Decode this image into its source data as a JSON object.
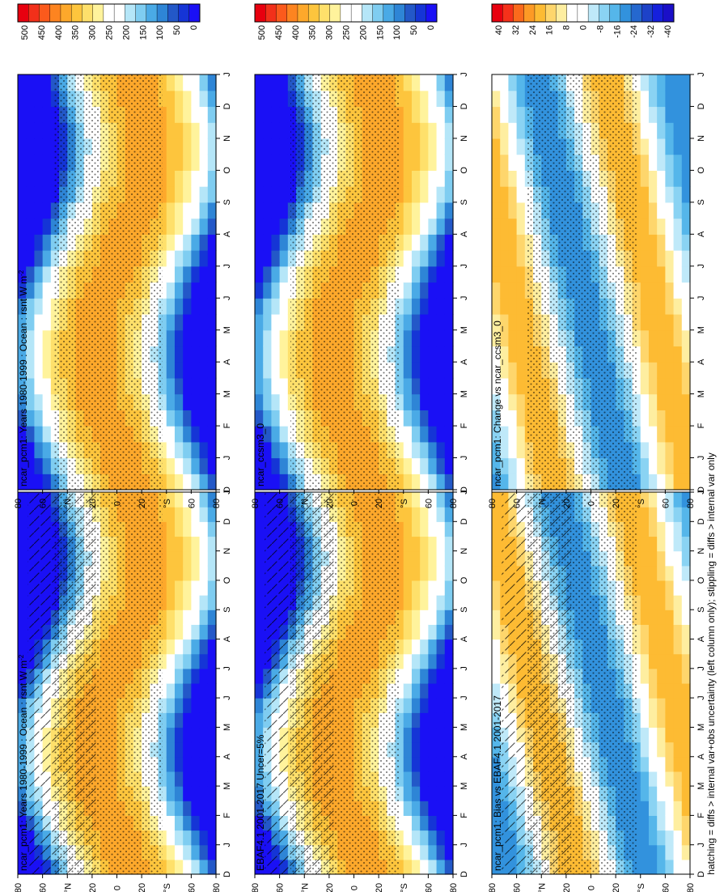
{
  "footer_note": "hatching = diffs > internal var+obs uncertainty (left column only); stippling = diffs > internal var only",
  "months": [
    "D",
    "J",
    "F",
    "M",
    "A",
    "M",
    "J",
    "J",
    "A",
    "S",
    "O",
    "N",
    "D",
    "J"
  ],
  "lat_ticks": [
    "80",
    "60",
    "°N",
    "20",
    "0",
    "20",
    "°S",
    "60",
    "80"
  ],
  "colorbars": {
    "absolute": {
      "labels": [
        "500",
        "450",
        "400",
        "350",
        "300",
        "250",
        "200",
        "150",
        "100",
        "50",
        "0"
      ],
      "colors": [
        "#e8000f",
        "#f2301a",
        "#fb5a1c",
        "#fd8420",
        "#fda82b",
        "#fdc53d",
        "#fee06b",
        "#fff39c",
        "#ffffff",
        "#ffffff",
        "#b5e6f8",
        "#7fcdf1",
        "#4aaae6",
        "#2e85d6",
        "#2358c8",
        "#1535d6",
        "#1a10f5"
      ]
    },
    "difference": {
      "labels": [
        "40",
        "32",
        "24",
        "16",
        "8",
        "0",
        "-8",
        "-16",
        "-24",
        "-32",
        "-40"
      ],
      "colors": [
        "#e8000f",
        "#f5311a",
        "#fb6a1c",
        "#fd9a25",
        "#fdbb33",
        "#fed66c",
        "#feeea0",
        "#ffffff",
        "#ffffff",
        "#bfe9f9",
        "#8ad3f3",
        "#55b6ea",
        "#3292dd",
        "#2568cf",
        "#1d42c8",
        "#1520dc",
        "#1a0fc8"
      ]
    }
  },
  "panels": [
    {
      "id": "model-left",
      "title": "ncar_pcm1: Years 1980-1999 : Ocean : rsnt W m",
      "title_sup": "-2",
      "kind": "absolute",
      "marks": [
        "hatch",
        "stipple"
      ]
    },
    {
      "id": "model-right",
      "title": "ncar_pcm1: Years 1980-1999 : Ocean : rsnt W m",
      "title_sup": "-2",
      "kind": "absolute",
      "marks": [
        "stipple"
      ]
    },
    {
      "id": "obs-left",
      "title": "EBAF4.1 2001-2017 Uncer=5%",
      "title_sup": "",
      "kind": "absolute",
      "marks": [
        "hatch",
        "stipple"
      ]
    },
    {
      "id": "ref-right",
      "title": "ncar_ccsm3_0",
      "title_sup": "",
      "kind": "absolute",
      "marks": [
        "stipple"
      ]
    },
    {
      "id": "bias-left",
      "title": "ncar_pcm1: Bias vs EBAF4.1 2001-2017",
      "title_sup": "",
      "kind": "difference",
      "marks": [
        "hatch",
        "stipple"
      ]
    },
    {
      "id": "change-right",
      "title": "ncar_pcm1: Change vs ncar_ccsm3_0",
      "title_sup": "",
      "kind": "difference",
      "marks": [
        "stipple"
      ]
    }
  ],
  "chart_data": [
    {
      "type": "heatmap",
      "title": "ncar_pcm1: Years 1980-1999 : Ocean : rsnt W m-2",
      "x": [
        "D",
        "J",
        "F",
        "M",
        "A",
        "M",
        "J",
        "J",
        "A",
        "S",
        "O",
        "N",
        "D",
        "J"
      ],
      "y": [
        "80",
        "60",
        "°N",
        "20",
        "0",
        "20",
        "°S",
        "60",
        "80"
      ],
      "zlim": [
        0,
        500
      ],
      "legend": "right"
    },
    {
      "type": "heatmap",
      "title": "ncar_pcm1: Years 1980-1999 : Ocean : rsnt W m-2",
      "x": [
        "D",
        "J",
        "F",
        "M",
        "A",
        "M",
        "J",
        "J",
        "A",
        "S",
        "O",
        "N",
        "D",
        "J"
      ],
      "y": [
        "80",
        "60",
        "°N",
        "20",
        "0",
        "20",
        "°S",
        "60",
        "80"
      ],
      "zlim": [
        0,
        500
      ],
      "legend": "right"
    },
    {
      "type": "heatmap",
      "title": "EBAF4.1 2001-2017 Uncer=5%",
      "x": [
        "D",
        "J",
        "F",
        "M",
        "A",
        "M",
        "J",
        "J",
        "A",
        "S",
        "O",
        "N",
        "D",
        "J"
      ],
      "y": [
        "80",
        "60",
        "°N",
        "20",
        "0",
        "20",
        "°S",
        "60",
        "80"
      ],
      "zlim": [
        0,
        500
      ],
      "legend": "right"
    },
    {
      "type": "heatmap",
      "title": "ncar_ccsm3_0",
      "x": [
        "D",
        "J",
        "F",
        "M",
        "A",
        "M",
        "J",
        "J",
        "A",
        "S",
        "O",
        "N",
        "D",
        "J"
      ],
      "y": [
        "80",
        "60",
        "°N",
        "20",
        "0",
        "20",
        "°S",
        "60",
        "80"
      ],
      "zlim": [
        0,
        500
      ],
      "legend": "right"
    },
    {
      "type": "heatmap",
      "title": "ncar_pcm1: Bias vs EBAF4.1 2001-2017",
      "x": [
        "D",
        "J",
        "F",
        "M",
        "A",
        "M",
        "J",
        "J",
        "A",
        "S",
        "O",
        "N",
        "D",
        "J"
      ],
      "y": [
        "80",
        "60",
        "°N",
        "20",
        "0",
        "20",
        "°S",
        "60",
        "80"
      ],
      "zlim": [
        -40,
        40
      ],
      "legend": "right"
    },
    {
      "type": "heatmap",
      "title": "ncar_pcm1: Change vs ncar_ccsm3_0",
      "x": [
        "D",
        "J",
        "F",
        "M",
        "A",
        "M",
        "J",
        "J",
        "A",
        "S",
        "O",
        "N",
        "D",
        "J"
      ],
      "y": [
        "80",
        "60",
        "°N",
        "20",
        "0",
        "20",
        "°S",
        "60",
        "80"
      ],
      "zlim": [
        -40,
        40
      ],
      "legend": "right"
    }
  ]
}
